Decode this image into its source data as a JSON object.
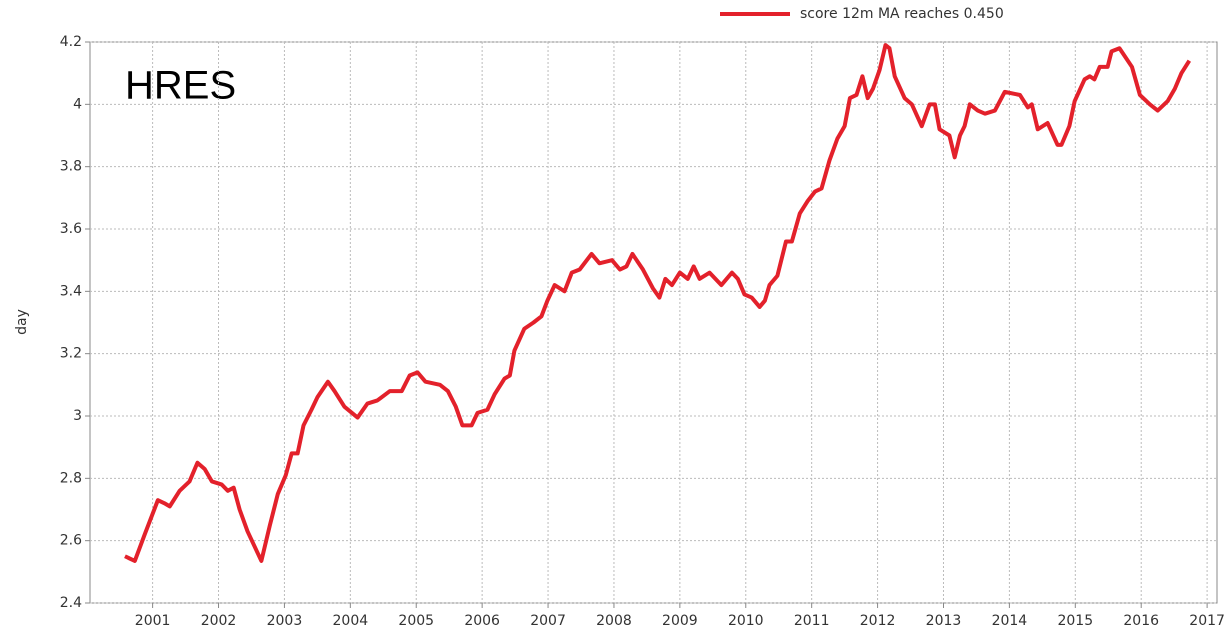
{
  "chart_data": {
    "type": "line",
    "annotation": "HRES",
    "ylabel": "day",
    "xlim": [
      2000.05,
      2017.15
    ],
    "xticks": [
      2001,
      2002,
      2003,
      2004,
      2005,
      2006,
      2007,
      2008,
      2009,
      2010,
      2011,
      2012,
      2013,
      2014,
      2015,
      2016,
      2017
    ],
    "ylim": [
      2.4,
      4.2
    ],
    "yticks": [
      2.4,
      2.6,
      2.8,
      3,
      3.2,
      3.4,
      3.6,
      3.8,
      4,
      4.2
    ],
    "grid": true,
    "x": [
      2000.58,
      2000.73,
      2000.88,
      2001.08,
      2001.18,
      2001.26,
      2001.41,
      2001.56,
      2001.68,
      2001.79,
      2001.9,
      2002.05,
      2002.14,
      2002.23,
      2002.32,
      2002.44,
      2002.65,
      2002.78,
      2002.9,
      2003.02,
      2003.11,
      2003.2,
      2003.29,
      2003.41,
      2003.5,
      2003.66,
      2003.76,
      2003.91,
      2004.11,
      2004.26,
      2004.41,
      2004.6,
      2004.78,
      2004.9,
      2005.02,
      2005.14,
      2005.36,
      2005.48,
      2005.6,
      2005.7,
      2005.84,
      2005.93,
      2006.08,
      2006.19,
      2006.34,
      2006.42,
      2006.49,
      2006.64,
      2006.78,
      2006.9,
      2006.99,
      2007.1,
      2007.25,
      2007.36,
      2007.48,
      2007.66,
      2007.78,
      2007.97,
      2008.09,
      2008.19,
      2008.28,
      2008.44,
      2008.59,
      2008.69,
      2008.78,
      2008.88,
      2009.0,
      2009.12,
      2009.21,
      2009.3,
      2009.45,
      2009.63,
      2009.79,
      2009.88,
      2009.98,
      2010.09,
      2010.21,
      2010.29,
      2010.36,
      2010.48,
      2010.61,
      2010.7,
      2010.82,
      2010.94,
      2011.05,
      2011.15,
      2011.27,
      2011.39,
      2011.5,
      2011.58,
      2011.68,
      2011.77,
      2011.85,
      2011.93,
      2012.03,
      2012.12,
      2012.18,
      2012.26,
      2012.41,
      2012.52,
      2012.67,
      2012.79,
      2012.87,
      2012.94,
      2013.09,
      2013.17,
      2013.25,
      2013.32,
      2013.4,
      2013.52,
      2013.63,
      2013.78,
      2013.93,
      2014.16,
      2014.28,
      2014.34,
      2014.43,
      2014.58,
      2014.73,
      2014.79,
      2014.91,
      2014.99,
      2015.14,
      2015.22,
      2015.29,
      2015.37,
      2015.49,
      2015.55,
      2015.67,
      2015.86,
      2015.98,
      2016.13,
      2016.25,
      2016.4,
      2016.51,
      2016.61,
      2016.73
    ],
    "series": [
      {
        "name": "score 12m MA reaches 0.450",
        "color": "#e3212b",
        "values": [
          2.55,
          2.535,
          2.62,
          2.73,
          2.72,
          2.71,
          2.76,
          2.79,
          2.85,
          2.83,
          2.79,
          2.78,
          2.76,
          2.77,
          2.7,
          2.63,
          2.535,
          2.65,
          2.75,
          2.81,
          2.88,
          2.88,
          2.97,
          3.02,
          3.06,
          3.11,
          3.08,
          3.03,
          2.995,
          3.04,
          3.05,
          3.08,
          3.08,
          3.13,
          3.14,
          3.11,
          3.1,
          3.08,
          3.03,
          2.97,
          2.97,
          3.01,
          3.02,
          3.07,
          3.12,
          3.13,
          3.21,
          3.28,
          3.3,
          3.32,
          3.37,
          3.42,
          3.4,
          3.46,
          3.47,
          3.52,
          3.49,
          3.5,
          3.47,
          3.48,
          3.52,
          3.47,
          3.41,
          3.38,
          3.44,
          3.42,
          3.46,
          3.44,
          3.48,
          3.44,
          3.46,
          3.42,
          3.46,
          3.44,
          3.39,
          3.38,
          3.35,
          3.37,
          3.42,
          3.45,
          3.56,
          3.56,
          3.65,
          3.69,
          3.72,
          3.73,
          3.82,
          3.89,
          3.93,
          4.02,
          4.03,
          4.09,
          4.02,
          4.05,
          4.11,
          4.19,
          4.18,
          4.09,
          4.02,
          4.0,
          3.93,
          4.0,
          4.0,
          3.92,
          3.9,
          3.83,
          3.9,
          3.93,
          4.0,
          3.98,
          3.97,
          3.98,
          4.04,
          4.03,
          3.99,
          4.0,
          3.92,
          3.94,
          3.87,
          3.87,
          3.93,
          4.01,
          4.08,
          4.09,
          4.08,
          4.12,
          4.12,
          4.17,
          4.18,
          4.12,
          4.03,
          4.0,
          3.98,
          4.01,
          4.05,
          4.1,
          4.14
        ]
      }
    ]
  }
}
